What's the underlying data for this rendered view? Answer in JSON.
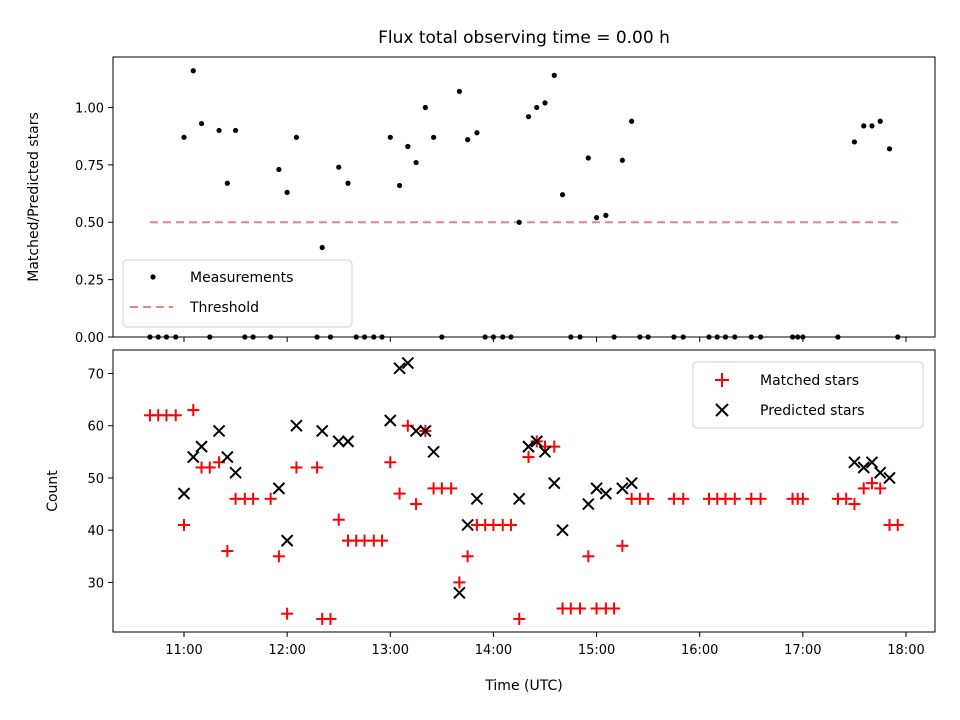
{
  "chart_data": [
    {
      "type": "scatter",
      "title": "Flux total observing time = 0.00 h",
      "xlabel": "",
      "ylabel": "Matched/Predicted stars",
      "ylim": [
        0,
        1.22
      ],
      "y_ticks": [
        0.0,
        0.25,
        0.5,
        0.75,
        1.0
      ],
      "y_tick_labels": [
        "0.00",
        "0.25",
        "0.50",
        "0.75",
        "1.00"
      ],
      "legend": {
        "placement": "lower-left",
        "entries": [
          "Measurements",
          "Threshold"
        ]
      },
      "series": [
        {
          "name": "Measurements",
          "color": "#000000",
          "marker": "dot",
          "points": [
            [
              10.67,
              0
            ],
            [
              10.75,
              0
            ],
            [
              10.83,
              0
            ],
            [
              10.92,
              0
            ],
            [
              11.0,
              0.87
            ],
            [
              11.09,
              1.16
            ],
            [
              11.17,
              0.93
            ],
            [
              11.25,
              0
            ],
            [
              11.34,
              0.9
            ],
            [
              11.42,
              0.67
            ],
            [
              11.5,
              0.9
            ],
            [
              11.59,
              0
            ],
            [
              11.67,
              0
            ],
            [
              11.84,
              0
            ],
            [
              11.92,
              0.73
            ],
            [
              12.0,
              0.63
            ],
            [
              12.09,
              0.87
            ],
            [
              12.29,
              0
            ],
            [
              12.34,
              0.39
            ],
            [
              12.42,
              0
            ],
            [
              12.5,
              0.74
            ],
            [
              12.59,
              0.67
            ],
            [
              12.67,
              0
            ],
            [
              12.75,
              0
            ],
            [
              12.84,
              0
            ],
            [
              12.92,
              0
            ],
            [
              13.0,
              0.87
            ],
            [
              13.09,
              0.66
            ],
            [
              13.17,
              0.83
            ],
            [
              13.25,
              0.76
            ],
            [
              13.34,
              1.0
            ],
            [
              13.42,
              0.87
            ],
            [
              13.5,
              0
            ],
            [
              13.67,
              1.07
            ],
            [
              13.75,
              0.86
            ],
            [
              13.84,
              0.89
            ],
            [
              13.92,
              0
            ],
            [
              14.0,
              0
            ],
            [
              14.09,
              0
            ],
            [
              14.17,
              0
            ],
            [
              14.25,
              0.5
            ],
            [
              14.34,
              0.96
            ],
            [
              14.42,
              1.0
            ],
            [
              14.5,
              1.02
            ],
            [
              14.59,
              1.14
            ],
            [
              14.67,
              0.62
            ],
            [
              14.75,
              0
            ],
            [
              14.84,
              0
            ],
            [
              14.92,
              0.78
            ],
            [
              15.0,
              0.52
            ],
            [
              15.09,
              0.53
            ],
            [
              15.17,
              0
            ],
            [
              15.25,
              0.77
            ],
            [
              15.34,
              0.94
            ],
            [
              15.42,
              0
            ],
            [
              15.5,
              0
            ],
            [
              15.75,
              0
            ],
            [
              15.84,
              0
            ],
            [
              16.09,
              0
            ],
            [
              16.17,
              0
            ],
            [
              16.25,
              0
            ],
            [
              16.34,
              0
            ],
            [
              16.5,
              0
            ],
            [
              16.59,
              0
            ],
            [
              16.9,
              0
            ],
            [
              16.95,
              0
            ],
            [
              17.0,
              0
            ],
            [
              17.34,
              0
            ],
            [
              17.5,
              0.85
            ],
            [
              17.59,
              0.92
            ],
            [
              17.67,
              0.92
            ],
            [
              17.75,
              0.94
            ],
            [
              17.84,
              0.82
            ],
            [
              17.92,
              0
            ]
          ]
        },
        {
          "name": "Threshold",
          "color": "#f08080",
          "style": "dashed",
          "points": [
            [
              10.67,
              0.5
            ],
            [
              17.92,
              0.5
            ]
          ]
        }
      ]
    },
    {
      "type": "scatter",
      "title": "",
      "xlabel": "Time (UTC)",
      "ylabel": "Count",
      "ylim": [
        20.5,
        74.5
      ],
      "y_ticks": [
        30,
        40,
        50,
        60,
        70
      ],
      "y_tick_labels": [
        "30",
        "40",
        "50",
        "60",
        "70"
      ],
      "x_ticks": [
        11,
        12,
        13,
        14,
        15,
        16,
        17,
        18
      ],
      "x_tick_labels": [
        "11:00",
        "12:00",
        "13:00",
        "14:00",
        "15:00",
        "16:00",
        "17:00",
        "18:00"
      ],
      "legend": {
        "placement": "top-right",
        "entries": [
          "Matched stars",
          "Predicted stars"
        ]
      },
      "series": [
        {
          "name": "Matched stars",
          "color": "#ff0000",
          "marker": "plus",
          "points": [
            [
              10.67,
              62
            ],
            [
              10.75,
              62
            ],
            [
              10.83,
              62
            ],
            [
              10.92,
              62
            ],
            [
              11.0,
              41
            ],
            [
              11.09,
              63
            ],
            [
              11.17,
              52
            ],
            [
              11.25,
              52
            ],
            [
              11.34,
              53
            ],
            [
              11.42,
              36
            ],
            [
              11.5,
              46
            ],
            [
              11.59,
              46
            ],
            [
              11.67,
              46
            ],
            [
              11.84,
              46
            ],
            [
              11.92,
              35
            ],
            [
              12.0,
              24
            ],
            [
              12.09,
              52
            ],
            [
              12.29,
              52
            ],
            [
              12.34,
              23
            ],
            [
              12.42,
              23
            ],
            [
              12.5,
              42
            ],
            [
              12.59,
              38
            ],
            [
              12.67,
              38
            ],
            [
              12.75,
              38
            ],
            [
              12.84,
              38
            ],
            [
              12.92,
              38
            ],
            [
              13.0,
              53
            ],
            [
              13.09,
              47
            ],
            [
              13.17,
              60
            ],
            [
              13.25,
              45
            ],
            [
              13.34,
              59
            ],
            [
              13.42,
              48
            ],
            [
              13.5,
              48
            ],
            [
              13.59,
              48
            ],
            [
              13.67,
              30
            ],
            [
              13.75,
              35
            ],
            [
              13.84,
              41
            ],
            [
              13.92,
              41
            ],
            [
              14.0,
              41
            ],
            [
              14.09,
              41
            ],
            [
              14.17,
              41
            ],
            [
              14.25,
              23
            ],
            [
              14.34,
              54
            ],
            [
              14.42,
              57
            ],
            [
              14.5,
              56
            ],
            [
              14.59,
              56
            ],
            [
              14.67,
              25
            ],
            [
              14.75,
              25
            ],
            [
              14.84,
              25
            ],
            [
              14.92,
              35
            ],
            [
              15.0,
              25
            ],
            [
              15.09,
              25
            ],
            [
              15.17,
              25
            ],
            [
              15.25,
              37
            ],
            [
              15.34,
              46
            ],
            [
              15.42,
              46
            ],
            [
              15.5,
              46
            ],
            [
              15.75,
              46
            ],
            [
              15.84,
              46
            ],
            [
              16.09,
              46
            ],
            [
              16.17,
              46
            ],
            [
              16.25,
              46
            ],
            [
              16.34,
              46
            ],
            [
              16.5,
              46
            ],
            [
              16.59,
              46
            ],
            [
              16.9,
              46
            ],
            [
              16.95,
              46
            ],
            [
              17.0,
              46
            ],
            [
              17.34,
              46
            ],
            [
              17.42,
              46
            ],
            [
              17.5,
              45
            ],
            [
              17.59,
              48
            ],
            [
              17.67,
              49
            ],
            [
              17.75,
              48
            ],
            [
              17.84,
              41
            ],
            [
              17.92,
              41
            ]
          ]
        },
        {
          "name": "Predicted stars",
          "color": "#000000",
          "marker": "x",
          "points": [
            [
              11.0,
              47
            ],
            [
              11.09,
              54
            ],
            [
              11.17,
              56
            ],
            [
              11.34,
              59
            ],
            [
              11.42,
              54
            ],
            [
              11.5,
              51
            ],
            [
              11.92,
              48
            ],
            [
              12.0,
              38
            ],
            [
              12.09,
              60
            ],
            [
              12.34,
              59
            ],
            [
              12.5,
              57
            ],
            [
              12.59,
              57
            ],
            [
              13.0,
              61
            ],
            [
              13.09,
              71
            ],
            [
              13.17,
              72
            ],
            [
              13.25,
              59
            ],
            [
              13.34,
              59
            ],
            [
              13.42,
              55
            ],
            [
              13.67,
              28
            ],
            [
              13.75,
              41
            ],
            [
              13.84,
              46
            ],
            [
              14.25,
              46
            ],
            [
              14.34,
              56
            ],
            [
              14.42,
              57
            ],
            [
              14.5,
              55
            ],
            [
              14.59,
              49
            ],
            [
              14.67,
              40
            ],
            [
              14.92,
              45
            ],
            [
              15.0,
              48
            ],
            [
              15.09,
              47
            ],
            [
              15.25,
              48
            ],
            [
              15.34,
              49
            ],
            [
              17.5,
              53
            ],
            [
              17.59,
              52
            ],
            [
              17.67,
              53
            ],
            [
              17.75,
              51
            ],
            [
              17.84,
              50
            ]
          ]
        }
      ]
    }
  ]
}
